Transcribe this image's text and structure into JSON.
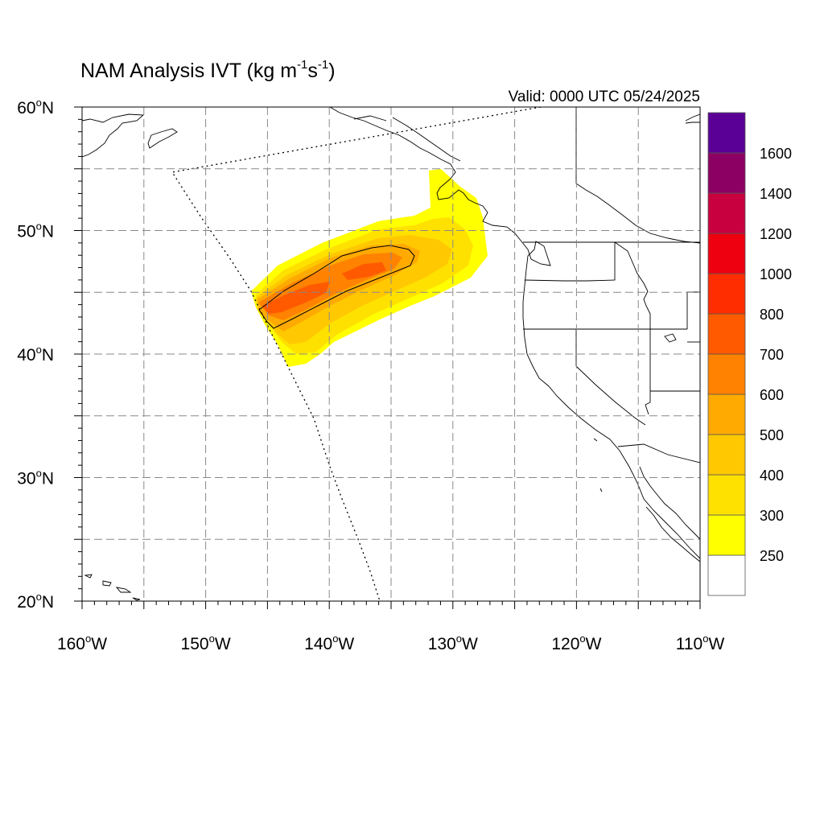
{
  "title": {
    "main": "NAM Analysis IVT (kg m",
    "sup1": "-1",
    "mid": "s",
    "sup2": "-1",
    "end": ")"
  },
  "valid_label": "Valid: 0000 UTC 05/24/2025",
  "map": {
    "lon_range": [
      -160,
      -110
    ],
    "lat_range": [
      20,
      60
    ],
    "grid": true,
    "lat_labels": [
      {
        "value": 60,
        "deg": "60",
        "hem": "N"
      },
      {
        "value": 50,
        "deg": "50",
        "hem": "N"
      },
      {
        "value": 40,
        "deg": "40",
        "hem": "N"
      },
      {
        "value": 30,
        "deg": "30",
        "hem": "N"
      },
      {
        "value": 20,
        "deg": "20",
        "hem": "N"
      }
    ],
    "lon_labels": [
      {
        "value": -160,
        "deg": "160",
        "hem": "W"
      },
      {
        "value": -150,
        "deg": "150",
        "hem": "W"
      },
      {
        "value": -140,
        "deg": "140",
        "hem": "W"
      },
      {
        "value": -130,
        "deg": "130",
        "hem": "W"
      },
      {
        "value": -120,
        "deg": "120",
        "hem": "W"
      },
      {
        "value": -110,
        "deg": "110",
        "hem": "W"
      }
    ]
  },
  "colorbar": {
    "labels": [
      "250",
      "300",
      "400",
      "500",
      "600",
      "700",
      "800",
      "1000",
      "1200",
      "1400",
      "1600"
    ],
    "colors": [
      "#ffffff",
      "#ffff00",
      "#ffe100",
      "#ffc800",
      "#ffaa00",
      "#ff8200",
      "#ff5a00",
      "#ff2d00",
      "#ee0010",
      "#c80040",
      "#8c0064",
      "#5a0096"
    ]
  }
}
